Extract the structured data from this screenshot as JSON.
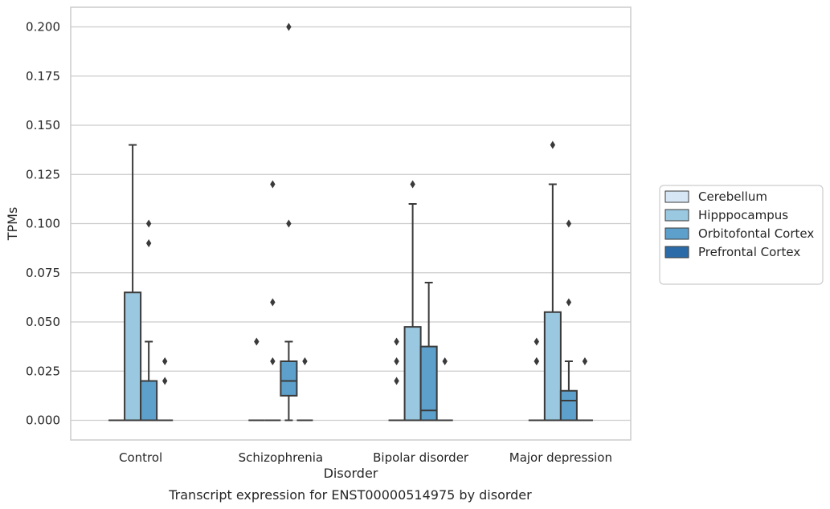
{
  "chart_data": {
    "type": "box",
    "title": "",
    "caption": "Transcript expression for ENST00000514975 by disorder",
    "xlabel": "Disorder",
    "ylabel": "TPMs",
    "ylim": [
      -0.01,
      0.21
    ],
    "yticks": [
      0.0,
      0.025,
      0.05,
      0.075,
      0.1,
      0.125,
      0.15,
      0.175,
      0.2
    ],
    "ytick_labels": [
      "0.000",
      "0.025",
      "0.050",
      "0.075",
      "0.100",
      "0.125",
      "0.150",
      "0.175",
      "0.200"
    ],
    "grid": true,
    "legend_position": "right",
    "categories": [
      "Control",
      "Schizophrenia",
      "Bipolar disorder",
      "Major depression"
    ],
    "series": [
      {
        "name": "Cerebellum",
        "color": "#d6e6f4",
        "boxes": [
          {
            "q1": 0,
            "median": 0,
            "q3": 0,
            "whisker_low": 0,
            "whisker_high": 0,
            "outliers": []
          },
          {
            "q1": 0,
            "median": 0,
            "q3": 0,
            "whisker_low": 0,
            "whisker_high": 0,
            "outliers": [
              0.04
            ]
          },
          {
            "q1": 0,
            "median": 0,
            "q3": 0,
            "whisker_low": 0,
            "whisker_high": 0,
            "outliers": [
              0.02,
              0.03,
              0.04
            ]
          },
          {
            "q1": 0,
            "median": 0,
            "q3": 0,
            "whisker_low": 0,
            "whisker_high": 0,
            "outliers": [
              0.03,
              0.03,
              0.04
            ]
          }
        ]
      },
      {
        "name": "Hipppocampus",
        "color": "#9ac8e0",
        "boxes": [
          {
            "q1": 0,
            "median": 0,
            "q3": 0.065,
            "whisker_low": 0,
            "whisker_high": 0.14,
            "outliers": []
          },
          {
            "q1": 0,
            "median": 0,
            "q3": 0,
            "whisker_low": 0,
            "whisker_high": 0,
            "outliers": [
              0.03,
              0.06,
              0.12
            ]
          },
          {
            "q1": 0,
            "median": 0,
            "q3": 0.0475,
            "whisker_low": 0,
            "whisker_high": 0.11,
            "outliers": [
              0.12
            ]
          },
          {
            "q1": 0,
            "median": 0,
            "q3": 0.055,
            "whisker_low": 0,
            "whisker_high": 0.12,
            "outliers": [
              0.14
            ]
          }
        ]
      },
      {
        "name": "Orbitofontal Cortex",
        "color": "#5da0cb",
        "boxes": [
          {
            "q1": 0,
            "median": 0,
            "q3": 0.02,
            "whisker_low": 0,
            "whisker_high": 0.04,
            "outliers": [
              0.09,
              0.1
            ]
          },
          {
            "q1": 0.0125,
            "median": 0.02,
            "q3": 0.03,
            "whisker_low": 0,
            "whisker_high": 0.04,
            "outliers": [
              0.1,
              0.2
            ]
          },
          {
            "q1": 0,
            "median": 0.005,
            "q3": 0.0375,
            "whisker_low": 0,
            "whisker_high": 0.07,
            "outliers": []
          },
          {
            "q1": 0,
            "median": 0.01,
            "q3": 0.015,
            "whisker_low": 0,
            "whisker_high": 0.03,
            "outliers": [
              0.06,
              0.1
            ]
          }
        ]
      },
      {
        "name": "Prefrontal Cortex",
        "color": "#2b6ca8",
        "boxes": [
          {
            "q1": 0,
            "median": 0,
            "q3": 0,
            "whisker_low": 0,
            "whisker_high": 0,
            "outliers": [
              0.02,
              0.03
            ]
          },
          {
            "q1": 0,
            "median": 0,
            "q3": 0,
            "whisker_low": 0,
            "whisker_high": 0,
            "outliers": [
              0.03
            ]
          },
          {
            "q1": 0,
            "median": 0,
            "q3": 0,
            "whisker_low": 0,
            "whisker_high": 0,
            "outliers": [
              0.03
            ]
          },
          {
            "q1": 0,
            "median": 0,
            "q3": 0,
            "whisker_low": 0,
            "whisker_high": 0,
            "outliers": [
              0.03
            ]
          }
        ]
      }
    ]
  }
}
